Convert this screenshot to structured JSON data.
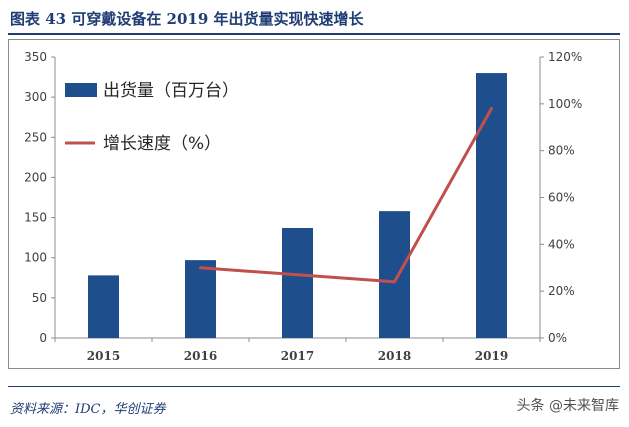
{
  "header": {
    "title": "图表 43 可穿戴设备在 2019 年出货量实现快速增长"
  },
  "footer": {
    "source": "资料来源：IDC，华创证券",
    "watermark": "头条 @未来智库"
  },
  "colors": {
    "bar": "#1f4e8c",
    "line": "#c0504d",
    "axis": "#8c8c8c",
    "text": "#404040",
    "title": "#1f3c73"
  },
  "chart_data": {
    "type": "bar",
    "categories": [
      "2015",
      "2016",
      "2017",
      "2018",
      "2019"
    ],
    "series": [
      {
        "name": "出货量（百万台）",
        "type": "bar",
        "axis": "left",
        "values": [
          78,
          97,
          137,
          158,
          330
        ]
      },
      {
        "name": "增长速度（%）",
        "type": "line",
        "axis": "right",
        "values": [
          null,
          30,
          27,
          24,
          98
        ]
      }
    ],
    "ylim": [
      0,
      350
    ],
    "y_ticks": [
      0,
      50,
      100,
      150,
      200,
      250,
      300,
      350
    ],
    "y2lim": [
      0,
      120
    ],
    "y2_ticks": [
      "0%",
      "20%",
      "40%",
      "60%",
      "80%",
      "100%",
      "120%"
    ],
    "legend": {
      "placement": "top-left",
      "entries": [
        "出货量（百万台）",
        "增长速度（%）"
      ]
    },
    "grid": false
  }
}
